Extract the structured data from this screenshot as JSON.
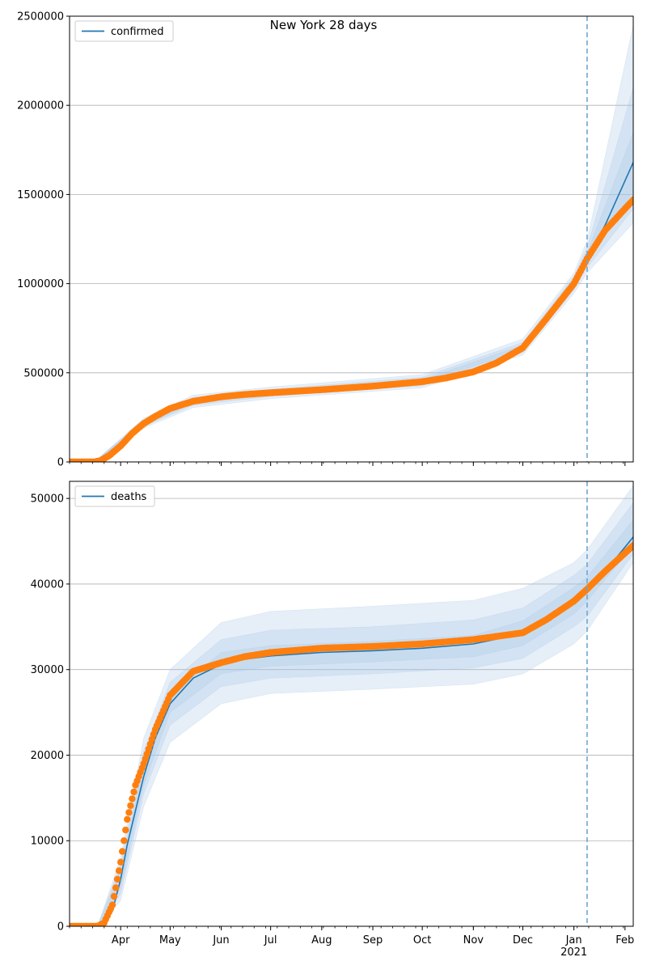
{
  "figure": {
    "title": "New York 28 days"
  },
  "colors": {
    "model": "#1f77b4",
    "observed": "#ff7f0e",
    "band": "#a6c6e6",
    "grid": "#b0b0b0",
    "forecast_line": "#6ea6cf"
  },
  "chart_data": [
    {
      "type": "line",
      "title": "New York 28 days",
      "legend": {
        "label": "confirmed",
        "placement": "top-left"
      },
      "xlabel": "",
      "ylabel": "",
      "x_range": [
        "2020-03-01",
        "2021-02-06"
      ],
      "ylim": [
        0,
        2500000
      ],
      "y_ticks": [
        0,
        500000,
        1000000,
        1500000,
        2000000,
        2500000
      ],
      "y_tick_labels": [
        "0",
        "500000",
        "1000000",
        "1500000",
        "2000000",
        "2500000"
      ],
      "grid": "horizontal",
      "forecast_start": "2021-01-09",
      "series": [
        {
          "name": "confirmed",
          "role": "model",
          "x": [
            "2020-03-01",
            "2020-03-16",
            "2020-03-20",
            "2020-03-25",
            "2020-04-01",
            "2020-04-08",
            "2020-04-15",
            "2020-04-22",
            "2020-05-01",
            "2020-05-15",
            "2020-06-01",
            "2020-06-15",
            "2020-07-01",
            "2020-08-01",
            "2020-09-01",
            "2020-10-01",
            "2020-10-15",
            "2020-11-01",
            "2020-11-15",
            "2020-12-01",
            "2020-12-15",
            "2021-01-01",
            "2021-01-09",
            "2021-01-20",
            "2021-02-06"
          ],
          "values": [
            0,
            0,
            8000,
            35000,
            90000,
            160000,
            215000,
            255000,
            300000,
            340000,
            365000,
            378000,
            388000,
            405000,
            425000,
            450000,
            470000,
            505000,
            555000,
            640000,
            800000,
            1000000,
            1140000,
            1330000,
            1680000
          ]
        },
        {
          "name": "",
          "role": "observed",
          "x": [
            "2020-03-01",
            "2020-03-16",
            "2020-03-20",
            "2020-03-25",
            "2020-04-01",
            "2020-04-08",
            "2020-04-15",
            "2020-04-22",
            "2020-05-01",
            "2020-05-15",
            "2020-06-01",
            "2020-06-15",
            "2020-07-01",
            "2020-08-01",
            "2020-09-01",
            "2020-10-01",
            "2020-10-15",
            "2020-11-01",
            "2020-11-15",
            "2020-12-01",
            "2020-12-15",
            "2021-01-01",
            "2021-01-09",
            "2021-01-20",
            "2021-02-06"
          ],
          "values": [
            0,
            0,
            8000,
            35000,
            90000,
            160000,
            215000,
            255000,
            300000,
            340000,
            365000,
            378000,
            388000,
            405000,
            425000,
            450000,
            470000,
            505000,
            555000,
            640000,
            800000,
            1000000,
            1140000,
            1300000,
            1470000
          ]
        }
      ],
      "bands": [
        {
          "x": [
            "2020-03-01",
            "2020-03-16",
            "2020-04-15",
            "2020-05-15",
            "2020-07-01",
            "2020-10-01",
            "2020-12-01",
            "2021-01-01",
            "2021-01-09",
            "2021-02-06"
          ],
          "lower": [
            0,
            0,
            190000,
            305000,
            355000,
            415000,
            600000,
            945000,
            1060000,
            1340000
          ],
          "upper": [
            0,
            0,
            245000,
            375000,
            420000,
            490000,
            690000,
            1060000,
            1240000,
            2450000
          ]
        },
        {
          "x": [
            "2020-03-01",
            "2020-03-16",
            "2020-04-15",
            "2020-05-15",
            "2020-07-01",
            "2020-10-01",
            "2020-12-01",
            "2021-01-01",
            "2021-01-09",
            "2021-02-06"
          ],
          "lower": [
            0,
            0,
            200000,
            318000,
            368000,
            428000,
            615000,
            965000,
            1090000,
            1420000
          ],
          "upper": [
            0,
            0,
            235000,
            362000,
            407000,
            475000,
            670000,
            1040000,
            1200000,
            2100000
          ]
        },
        {
          "x": [
            "2020-03-01",
            "2020-03-16",
            "2020-04-15",
            "2020-05-15",
            "2020-07-01",
            "2020-10-01",
            "2020-12-01",
            "2021-01-01",
            "2021-01-09",
            "2021-02-06"
          ],
          "lower": [
            0,
            0,
            207000,
            330000,
            378000,
            440000,
            628000,
            982000,
            1115000,
            1520000
          ],
          "upper": [
            0,
            0,
            225000,
            350000,
            398000,
            462000,
            655000,
            1020000,
            1170000,
            1850000
          ]
        }
      ]
    },
    {
      "type": "line",
      "title": "",
      "legend": {
        "label": "deaths",
        "placement": "top-left"
      },
      "xlabel": "",
      "ylabel": "",
      "x_range": [
        "2020-03-01",
        "2021-02-06"
      ],
      "ylim": [
        0,
        52000
      ],
      "y_ticks": [
        0,
        10000,
        20000,
        30000,
        40000,
        50000
      ],
      "y_tick_labels": [
        "0",
        "10000",
        "20000",
        "30000",
        "40000",
        "50000"
      ],
      "x_tick_labels": [
        "Apr",
        "May",
        "Jun",
        "Jul",
        "Aug",
        "Sep",
        "Oct",
        "Nov",
        "Dec",
        "Jan",
        "Feb"
      ],
      "x_tick_dates": [
        "2020-04-01",
        "2020-05-01",
        "2020-06-01",
        "2020-07-01",
        "2020-08-01",
        "2020-09-01",
        "2020-10-01",
        "2020-11-01",
        "2020-12-01",
        "2021-01-01",
        "2021-02-01"
      ],
      "x_year_label": "2021",
      "grid": "horizontal",
      "forecast_start": "2021-01-09",
      "series": [
        {
          "name": "deaths",
          "role": "model",
          "x": [
            "2020-03-01",
            "2020-03-18",
            "2020-03-22",
            "2020-03-27",
            "2020-04-01",
            "2020-04-05",
            "2020-04-10",
            "2020-04-15",
            "2020-04-22",
            "2020-05-01",
            "2020-05-15",
            "2020-06-01",
            "2020-06-15",
            "2020-07-01",
            "2020-08-01",
            "2020-09-01",
            "2020-10-01",
            "2020-11-01",
            "2020-12-01",
            "2020-12-15",
            "2021-01-01",
            "2021-01-09",
            "2021-01-20",
            "2021-02-06"
          ],
          "values": [
            0,
            0,
            300,
            1800,
            5500,
            9500,
            13500,
            17500,
            22000,
            26000,
            29000,
            30600,
            31200,
            31600,
            32000,
            32200,
            32500,
            33000,
            34200,
            35800,
            38000,
            39400,
            41500,
            45500
          ]
        },
        {
          "name": "",
          "role": "observed",
          "x": [
            "2020-03-01",
            "2020-03-18",
            "2020-03-22",
            "2020-03-27",
            "2020-04-01",
            "2020-04-05",
            "2020-04-10",
            "2020-04-15",
            "2020-04-22",
            "2020-05-01",
            "2020-05-15",
            "2020-06-01",
            "2020-06-15",
            "2020-07-01",
            "2020-08-01",
            "2020-09-01",
            "2020-10-01",
            "2020-11-01",
            "2020-12-01",
            "2020-12-15",
            "2021-01-01",
            "2021-01-09",
            "2021-01-20",
            "2021-02-06"
          ],
          "values": [
            0,
            0,
            400,
            2500,
            7500,
            12500,
            16500,
            19000,
            23000,
            27000,
            29800,
            30800,
            31500,
            32000,
            32500,
            32700,
            33000,
            33500,
            34300,
            35800,
            38000,
            39400,
            41500,
            44500
          ]
        }
      ],
      "bands": [
        {
          "x": [
            "2020-03-01",
            "2020-03-18",
            "2020-04-01",
            "2020-04-15",
            "2020-05-01",
            "2020-06-01",
            "2020-07-01",
            "2020-09-01",
            "2020-11-01",
            "2020-12-01",
            "2021-01-01",
            "2021-01-09",
            "2021-02-06"
          ],
          "lower": [
            0,
            0,
            3000,
            14000,
            21500,
            26000,
            27200,
            27700,
            28300,
            29500,
            33000,
            34500,
            42500
          ],
          "upper": [
            0,
            0,
            8000,
            22000,
            30000,
            35500,
            36800,
            37400,
            38100,
            39500,
            42500,
            44000,
            51500
          ]
        },
        {
          "x": [
            "2020-03-01",
            "2020-03-18",
            "2020-04-01",
            "2020-04-15",
            "2020-05-01",
            "2020-06-01",
            "2020-07-01",
            "2020-09-01",
            "2020-11-01",
            "2020-12-01",
            "2021-01-01",
            "2021-01-09",
            "2021-02-06"
          ],
          "lower": [
            0,
            0,
            3800,
            15500,
            23500,
            28000,
            29000,
            29500,
            30200,
            31300,
            35000,
            36200,
            43500
          ],
          "upper": [
            0,
            0,
            7200,
            20500,
            28500,
            33500,
            34600,
            35000,
            35800,
            37200,
            41000,
            42300,
            49500
          ]
        },
        {
          "x": [
            "2020-03-01",
            "2020-03-18",
            "2020-04-01",
            "2020-04-15",
            "2020-05-01",
            "2020-06-01",
            "2020-07-01",
            "2020-09-01",
            "2020-11-01",
            "2020-12-01",
            "2021-01-01",
            "2021-01-09",
            "2021-02-06"
          ],
          "lower": [
            0,
            0,
            4500,
            16500,
            25000,
            29500,
            30400,
            30900,
            31500,
            32800,
            36500,
            38000,
            44500
          ],
          "upper": [
            0,
            0,
            6500,
            19000,
            27000,
            32000,
            32800,
            33300,
            34000,
            35700,
            39600,
            40800,
            47500
          ]
        }
      ]
    }
  ]
}
